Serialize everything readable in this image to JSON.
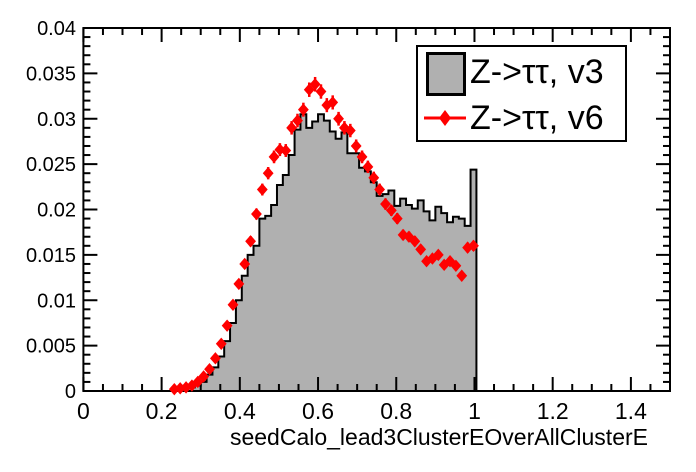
{
  "chart_data": {
    "type": "bar",
    "subtype": "root-histogram-comparison",
    "title": "",
    "xlabel": "seedCalo_lead3ClusterEOverAllClusterE",
    "ylabel": "",
    "xlim": [
      0,
      1.5
    ],
    "ylim": [
      0,
      0.04
    ],
    "grid": false,
    "x_tick_values": [
      0,
      0.2,
      0.4,
      0.6,
      0.8,
      1,
      1.2,
      1.4
    ],
    "x_tick_labels": [
      "0",
      "0.2",
      "0.4",
      "0.6",
      "0.8",
      "1",
      "1.2",
      "1.4"
    ],
    "x_minor_step": 0.05,
    "y_tick_values": [
      0,
      0.005,
      0.01,
      0.015,
      0.02,
      0.025,
      0.03,
      0.035,
      0.04
    ],
    "y_tick_labels": [
      "0",
      "0.005",
      "0.01",
      "0.015",
      "0.02",
      "0.025",
      "0.03",
      "0.035",
      "0.04"
    ],
    "y_minor_step": 0.001,
    "bin_width": 0.015,
    "bin_centers": [
      0.2325,
      0.2475,
      0.2625,
      0.2775,
      0.2925,
      0.3075,
      0.3225,
      0.3375,
      0.3525,
      0.3675,
      0.3825,
      0.3975,
      0.4125,
      0.4275,
      0.4425,
      0.4575,
      0.4725,
      0.4875,
      0.5025,
      0.5175,
      0.5325,
      0.5475,
      0.5625,
      0.5775,
      0.5925,
      0.6075,
      0.6225,
      0.6375,
      0.6525,
      0.6675,
      0.6825,
      0.6975,
      0.7125,
      0.7275,
      0.7425,
      0.7575,
      0.7725,
      0.7875,
      0.8025,
      0.8175,
      0.8325,
      0.8475,
      0.8625,
      0.8775,
      0.8925,
      0.9075,
      0.9225,
      0.9375,
      0.9525,
      0.9675,
      0.9825,
      0.9975
    ],
    "series": [
      {
        "name": "Z->ττ, v3",
        "style": "filled-step-histogram",
        "fill_color": "#b0b0b0",
        "line_color": "#000000",
        "values": [
          0.0001,
          0.0002,
          0.0003,
          0.0004,
          0.0006,
          0.001,
          0.0018,
          0.0026,
          0.0038,
          0.0055,
          0.0075,
          0.01,
          0.0127,
          0.015,
          0.016,
          0.019,
          0.0193,
          0.0205,
          0.0227,
          0.0238,
          0.026,
          0.0288,
          0.0305,
          0.029,
          0.0297,
          0.0305,
          0.0298,
          0.0286,
          0.0278,
          0.0285,
          0.0262,
          0.0262,
          0.0246,
          0.0242,
          0.023,
          0.0215,
          0.0217,
          0.0221,
          0.0204,
          0.0212,
          0.0205,
          0.0201,
          0.021,
          0.0198,
          0.0188,
          0.0203,
          0.0196,
          0.0186,
          0.0192,
          0.019,
          0.0182,
          0.0244
        ]
      },
      {
        "name": "Z->ττ, v6",
        "style": "points-with-errors",
        "marker": "diamond",
        "color": "#ff0000",
        "values": [
          0.0002,
          0.0003,
          0.0004,
          0.0006,
          0.001,
          0.0016,
          0.0024,
          0.0036,
          0.0052,
          0.0072,
          0.0095,
          0.0118,
          0.014,
          0.0165,
          0.0195,
          0.0222,
          0.024,
          0.0258,
          0.0266,
          0.0265,
          0.029,
          0.0298,
          0.031,
          0.0332,
          0.0338,
          0.033,
          0.0315,
          0.0318,
          0.03,
          0.029,
          0.0287,
          0.027,
          0.0258,
          0.0247,
          0.0235,
          0.0222,
          0.0206,
          0.0199,
          0.019,
          0.0172,
          0.017,
          0.0165,
          0.0156,
          0.0143,
          0.0146,
          0.015,
          0.0139,
          0.0143,
          0.0138,
          0.0127,
          0.0158,
          0.016
        ],
        "error_at_peak": 0.0008
      }
    ],
    "legend": {
      "position": "top-right",
      "entries": [
        "Z->ττ, v3",
        "Z->ττ, v6"
      ]
    }
  }
}
